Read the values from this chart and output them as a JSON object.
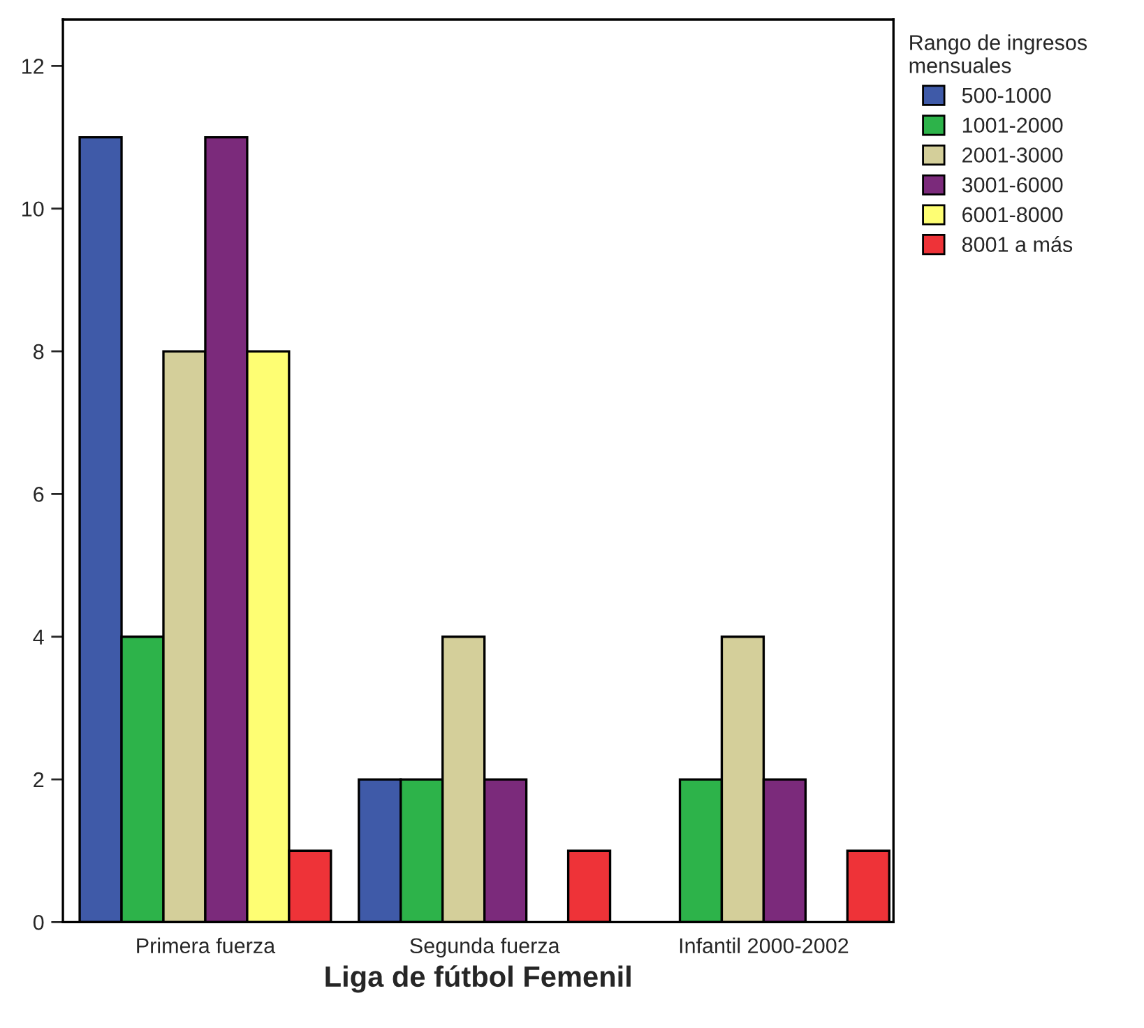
{
  "chart_data": {
    "type": "bar",
    "xlabel": "Liga de fútbol Femenil",
    "categories": [
      "Primera fuerza",
      "Segunda fuerza",
      "Infantil 2000-2002"
    ],
    "legend_title": "Rango de ingresos mensuales",
    "series": [
      {
        "name": "500-1000",
        "color": "#3f5aa8",
        "values": [
          11,
          2,
          null
        ]
      },
      {
        "name": "1001-2000",
        "color": "#2db34a",
        "values": [
          4,
          2,
          2
        ]
      },
      {
        "name": "2001-3000",
        "color": "#d4cf9a",
        "values": [
          8,
          4,
          4
        ]
      },
      {
        "name": "3001-6000",
        "color": "#7b2a7b",
        "values": [
          11,
          2,
          2
        ]
      },
      {
        "name": "6001-8000",
        "color": "#fefe73",
        "values": [
          8,
          null,
          null
        ]
      },
      {
        "name": "8001 a más",
        "color": "#ee3338",
        "values": [
          1,
          1,
          1
        ]
      }
    ],
    "ylim": [
      0,
      12.65
    ],
    "yticks": [
      0,
      2,
      4,
      6,
      8,
      10,
      12
    ],
    "grid": false,
    "legend": "top right"
  }
}
